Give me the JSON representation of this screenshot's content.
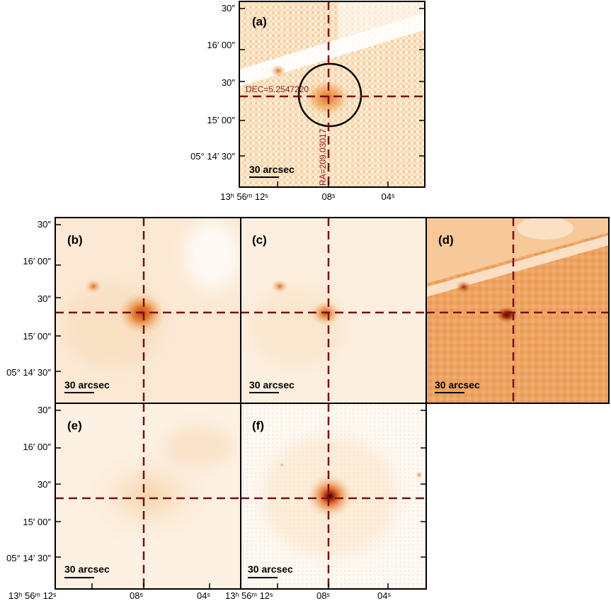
{
  "figure": {
    "panels": [
      {
        "id": "a",
        "label": "(a)",
        "ra_label": "RA=209.03017",
        "dec_label": "DEC=5.2547220",
        "scalebar": "30 arcsec"
      },
      {
        "id": "b",
        "label": "(b)",
        "scalebar": "30 arcsec"
      },
      {
        "id": "c",
        "label": "(c)",
        "scalebar": "30 arcsec"
      },
      {
        "id": "d",
        "label": "(d)",
        "scalebar": "30 arcsec"
      },
      {
        "id": "e",
        "label": "(e)",
        "scalebar": "30 arcsec"
      },
      {
        "id": "f",
        "label": "(f)",
        "scalebar": "30 arcsec"
      }
    ],
    "dec_ticks": [
      "30″",
      "16′ 00″",
      "30″",
      "15′ 00″",
      "05° 14′ 30″"
    ],
    "ra_ticks_a": [
      "13ʰ 56ᵐ 12ˢ",
      "08ˢ",
      "04ˢ"
    ],
    "ra_ticks_e": [
      "13ʰ 56ᵐ 12ˢ",
      "08ˢ",
      "04ˢ"
    ],
    "ra_ticks_f": [
      "13ʰ 56ᵐ 12ˢ",
      "08ˢ",
      "04ˢ"
    ],
    "colors": {
      "crosshair": "#7a1010",
      "dec_text": "#8b1a1a",
      "ring": "#000000",
      "bg_pale": "#fdf3e6",
      "bg_d": "#f2b070"
    }
  }
}
